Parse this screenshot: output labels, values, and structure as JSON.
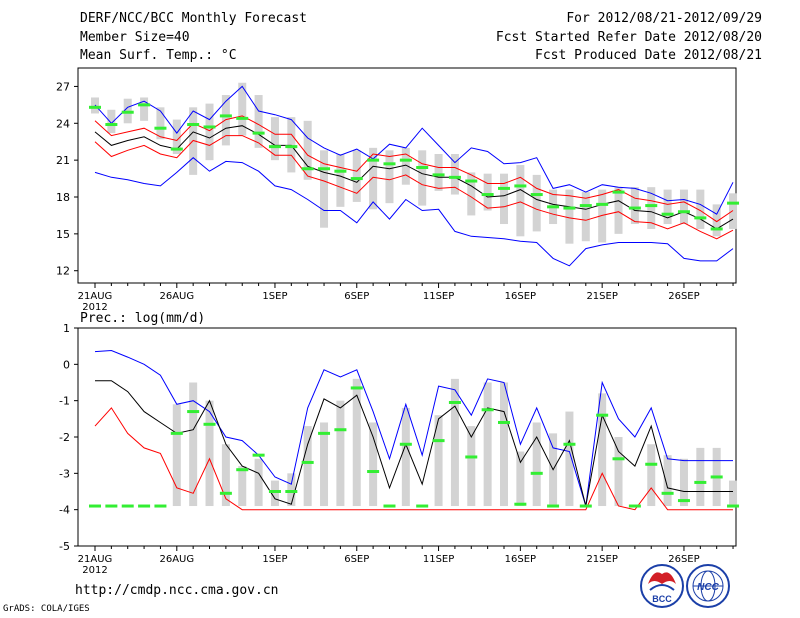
{
  "header": {
    "title": "DERF/NCC/BCC Monthly Forecast",
    "member_size": "Member Size=40",
    "variable": "Mean Surf. Temp.: °C",
    "for_range": "For 2012/08/21-2012/09/29",
    "fcst_started": "Fcst Started Refer Date 2012/08/20",
    "fcst_produced": "Fcst Produced Date 2012/08/21"
  },
  "footer": {
    "url": "http://cmdp.ncc.cma.gov.cn",
    "grads": "GrADS: COLA/IGES",
    "bcc_logo": "BCC",
    "ncc_logo": "NCC"
  },
  "colors": {
    "ensemble_bar": "#d3d3d3",
    "observed": "#33ee33",
    "mean": "#000000",
    "spread_outer": "#0000ff",
    "spread_inner": "#ff0000"
  },
  "chart_data": [
    {
      "type": "bar",
      "title": "Mean Surf. Temp.: °C",
      "ylim": [
        11,
        28.5
      ],
      "yticks": [
        "27",
        "24",
        "21",
        "18",
        "15",
        "12"
      ],
      "ytick_values": [
        27,
        24,
        21,
        18,
        15,
        12
      ],
      "xtick_labels": [
        "21AUG",
        "26AUG",
        "1SEP",
        "6SEP",
        "11SEP",
        "16SEP",
        "21SEP",
        "26SEP"
      ],
      "xtick_index": [
        0,
        5,
        11,
        16,
        21,
        26,
        31,
        36
      ],
      "x_year_label": "2012",
      "days": 40,
      "bar_low": [
        24.8,
        23.2,
        24.0,
        24.2,
        22.7,
        21.5,
        19.8,
        21.0,
        22.2,
        23.0,
        22.0,
        21.0,
        20.0,
        19.4,
        15.5,
        17.2,
        17.6,
        17.0,
        17.5,
        19.0,
        17.3,
        18.5,
        18.2,
        16.5,
        16.9,
        15.8,
        14.8,
        15.2,
        15.8,
        14.2,
        14.4,
        14.3,
        15.0,
        15.8,
        15.4,
        15.8,
        15.8,
        15.4,
        14.8,
        15.4
      ],
      "bar_high": [
        26.1,
        25.1,
        26.0,
        26.1,
        25.3,
        24.3,
        25.3,
        25.6,
        26.3,
        27.3,
        26.3,
        24.5,
        24.5,
        24.2,
        21.8,
        21.5,
        21.8,
        22.0,
        21.8,
        22.0,
        21.8,
        21.5,
        21.5,
        20.0,
        19.9,
        19.9,
        20.6,
        19.8,
        18.6,
        18.6,
        18.4,
        18.6,
        18.8,
        18.8,
        18.8,
        18.6,
        18.6,
        18.6,
        17.4,
        18.3
      ],
      "observed": [
        25.3,
        23.9,
        24.9,
        25.5,
        23.6,
        21.9,
        23.9,
        23.7,
        24.6,
        24.4,
        23.2,
        22.1,
        22.1,
        20.3,
        20.3,
        20.1,
        19.5,
        21.0,
        20.7,
        21.0,
        20.4,
        19.8,
        19.6,
        19.3,
        18.2,
        18.7,
        18.9,
        18.2,
        17.2,
        17.1,
        17.3,
        17.4,
        18.4,
        17.1,
        17.3,
        16.6,
        16.8,
        16.3,
        15.4,
        17.5
      ],
      "series": [
        {
          "name": "ensemble max",
          "color": "#0000ff",
          "values": [
            25.5,
            24.0,
            25.3,
            25.8,
            25.0,
            23.2,
            25.0,
            24.3,
            25.8,
            27.0,
            25.0,
            24.7,
            24.3,
            22.8,
            22.0,
            21.4,
            21.9,
            21.1,
            22.3,
            22.0,
            23.6,
            22.2,
            20.8,
            22.0,
            21.7,
            20.7,
            20.8,
            21.2,
            18.7,
            19.0,
            18.4,
            19.0,
            18.8,
            18.7,
            18.3,
            17.7,
            17.8,
            17.4,
            16.6,
            19.2
          ]
        },
        {
          "name": "mean + sd",
          "color": "#ff0000",
          "values": [
            24.2,
            23.0,
            23.3,
            23.6,
            22.9,
            22.6,
            24.0,
            23.4,
            24.3,
            24.6,
            23.9,
            23.1,
            23.1,
            21.4,
            20.7,
            20.4,
            20.1,
            21.5,
            21.3,
            21.5,
            20.7,
            20.4,
            20.4,
            19.8,
            19.1,
            19.1,
            19.6,
            18.7,
            18.2,
            18.1,
            17.9,
            18.2,
            18.6,
            17.9,
            17.7,
            17.4,
            17.6,
            16.9,
            16.0,
            16.9
          ]
        },
        {
          "name": "ensemble mean",
          "color": "#000000",
          "values": [
            23.3,
            22.2,
            22.6,
            22.9,
            22.2,
            21.9,
            23.3,
            22.8,
            23.6,
            23.8,
            23.1,
            22.2,
            22.2,
            20.5,
            20.0,
            19.7,
            19.2,
            20.5,
            20.3,
            20.6,
            19.9,
            19.6,
            19.6,
            18.9,
            18.0,
            18.1,
            18.6,
            17.8,
            17.4,
            17.2,
            17.0,
            17.4,
            17.7,
            16.9,
            16.8,
            16.3,
            16.8,
            16.2,
            15.4,
            16.2
          ]
        },
        {
          "name": "mean - sd",
          "color": "#ff0000",
          "values": [
            22.5,
            21.3,
            21.8,
            22.2,
            21.5,
            21.2,
            22.6,
            22.2,
            23.0,
            23.0,
            22.4,
            21.4,
            21.4,
            19.7,
            19.3,
            18.8,
            18.3,
            19.6,
            19.4,
            19.8,
            19.0,
            18.7,
            18.8,
            18.0,
            17.1,
            17.2,
            17.6,
            17.0,
            16.6,
            16.3,
            16.1,
            16.5,
            16.8,
            16.0,
            15.9,
            15.4,
            15.9,
            15.2,
            14.6,
            15.3
          ]
        },
        {
          "name": "ensemble min",
          "color": "#0000ff",
          "values": [
            20.0,
            19.6,
            19.4,
            19.1,
            18.9,
            20.0,
            21.2,
            20.1,
            20.9,
            20.8,
            20.1,
            18.9,
            18.6,
            17.8,
            16.9,
            16.9,
            15.9,
            17.6,
            16.2,
            17.8,
            16.9,
            17.0,
            15.2,
            14.8,
            14.7,
            14.6,
            14.4,
            14.3,
            13.0,
            12.4,
            13.8,
            14.1,
            14.3,
            14.3,
            14.3,
            14.2,
            13.0,
            12.8,
            12.8,
            13.8
          ]
        }
      ]
    },
    {
      "type": "bar",
      "title": "Prec.: log(mm/d)",
      "ylim": [
        -5,
        1
      ],
      "yticks": [
        "1",
        "0",
        "-1",
        "-2",
        "-3",
        "-4",
        "-5"
      ],
      "ytick_values": [
        1,
        0,
        -1,
        -2,
        -3,
        -4,
        -5
      ],
      "xtick_labels": [
        "21AUG",
        "26AUG",
        "1SEP",
        "6SEP",
        "11SEP",
        "16SEP",
        "21SEP",
        "26SEP"
      ],
      "xtick_index": [
        0,
        5,
        11,
        16,
        21,
        26,
        31,
        36
      ],
      "x_year_label": "2012",
      "days": 40,
      "bar_low": [
        -3.9,
        -3.9,
        -3.9,
        -3.9,
        -3.9,
        -3.9,
        -3.9,
        -3.9,
        -3.9,
        -3.9,
        -3.9,
        -3.9,
        -3.9,
        -3.9,
        -3.9,
        -3.9,
        -3.9,
        -3.9,
        -3.9,
        -3.9,
        -3.9,
        -3.9,
        -3.9,
        -3.9,
        -3.9,
        -3.9,
        -3.9,
        -3.9,
        -3.9,
        -3.9,
        -3.9,
        -3.9,
        -3.9,
        -3.9,
        -3.9,
        -3.9,
        -3.9,
        -3.9,
        -3.9,
        -3.9
      ],
      "bar_high": [
        -3.9,
        -3.9,
        -3.9,
        -3.9,
        -3.9,
        -1.1,
        -0.5,
        -1.0,
        -2.2,
        -2.8,
        -2.6,
        -3.2,
        -3.0,
        -1.7,
        -1.6,
        -1.0,
        -0.4,
        -1.6,
        -3.9,
        -1.2,
        -3.9,
        -1.4,
        -0.4,
        -1.7,
        -0.5,
        -0.5,
        -2.4,
        -1.6,
        -1.9,
        -1.3,
        -3.9,
        -0.8,
        -2.0,
        -3.9,
        -2.2,
        -2.5,
        -2.6,
        -2.3,
        -2.3,
        -3.2
      ],
      "observed": [
        -3.9,
        -3.9,
        -3.9,
        -3.9,
        -3.9,
        -1.9,
        -1.3,
        -1.65,
        -3.55,
        -2.9,
        -2.5,
        -3.5,
        -3.5,
        -2.7,
        -1.9,
        -1.8,
        -0.65,
        -2.95,
        -3.9,
        -2.2,
        -3.9,
        -2.1,
        -1.05,
        -2.55,
        -1.25,
        -1.6,
        -3.85,
        -3.0,
        -3.9,
        -2.2,
        -3.9,
        -1.4,
        -2.6,
        -3.9,
        -2.75,
        -3.55,
        -3.75,
        -3.25,
        -3.1,
        -3.9
      ],
      "series": [
        {
          "name": "ensemble max",
          "color": "#0000ff",
          "values": [
            0.35,
            0.38,
            0.2,
            0.0,
            -0.3,
            -1.1,
            -1.0,
            -1.3,
            -2.0,
            -2.1,
            -2.5,
            -3.1,
            -3.3,
            -1.2,
            -0.15,
            -0.35,
            -0.15,
            -1.3,
            -2.6,
            -1.1,
            -2.5,
            -0.6,
            -0.7,
            -1.4,
            -0.4,
            -0.5,
            -2.2,
            -1.2,
            -2.3,
            -2.4,
            -3.9,
            -0.5,
            -1.5,
            -2.0,
            -1.2,
            -2.6,
            -2.65,
            -2.65,
            -2.65,
            -2.65
          ]
        },
        {
          "name": "ensemble mean",
          "color": "#000000",
          "values": [
            -0.45,
            -0.45,
            -0.75,
            -1.3,
            -1.6,
            -1.9,
            -1.8,
            -1.0,
            -2.2,
            -2.8,
            -3.0,
            -3.7,
            -3.85,
            -2.2,
            -0.95,
            -1.2,
            -0.85,
            -2.0,
            -3.4,
            -2.2,
            -3.3,
            -1.5,
            -1.15,
            -2.0,
            -1.2,
            -1.3,
            -2.7,
            -2.0,
            -2.9,
            -2.1,
            -3.9,
            -1.4,
            -2.4,
            -2.8,
            -1.7,
            -3.4,
            -3.5,
            -3.5,
            -3.5,
            -3.5
          ]
        },
        {
          "name": "mean - sd",
          "color": "#ff0000",
          "values": [
            -1.7,
            -1.2,
            -1.9,
            -2.3,
            -2.45,
            -3.4,
            -3.55,
            -2.6,
            -3.7,
            -4.0,
            -4.0,
            -4.0,
            -4.0,
            -4.0,
            -4.0,
            -4.0,
            -4.0,
            -4.0,
            -4.0,
            -4.0,
            -4.0,
            -4.0,
            -4.0,
            -4.0,
            -4.0,
            -4.0,
            -4.0,
            -4.0,
            -4.0,
            -4.0,
            -4.0,
            -3.0,
            -3.9,
            -4.0,
            -3.4,
            -4.0,
            -4.0,
            -4.0,
            -4.0,
            -4.0
          ]
        }
      ]
    }
  ]
}
